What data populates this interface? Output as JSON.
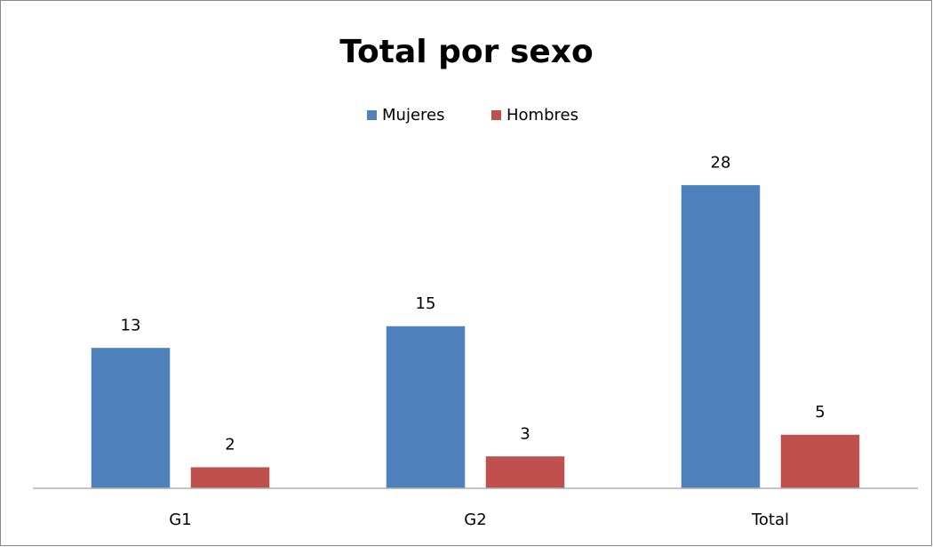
{
  "chart_data": {
    "type": "bar",
    "title": "Total por sexo",
    "categories": [
      "G1",
      "G2",
      "Total"
    ],
    "series": [
      {
        "name": "Mujeres",
        "color": "#4f81bd",
        "values": [
          13,
          15,
          28
        ]
      },
      {
        "name": "Hombres",
        "color": "#c0504d",
        "values": [
          2,
          3,
          5
        ]
      }
    ],
    "ylim": [
      0,
      30
    ],
    "legend": "top"
  }
}
